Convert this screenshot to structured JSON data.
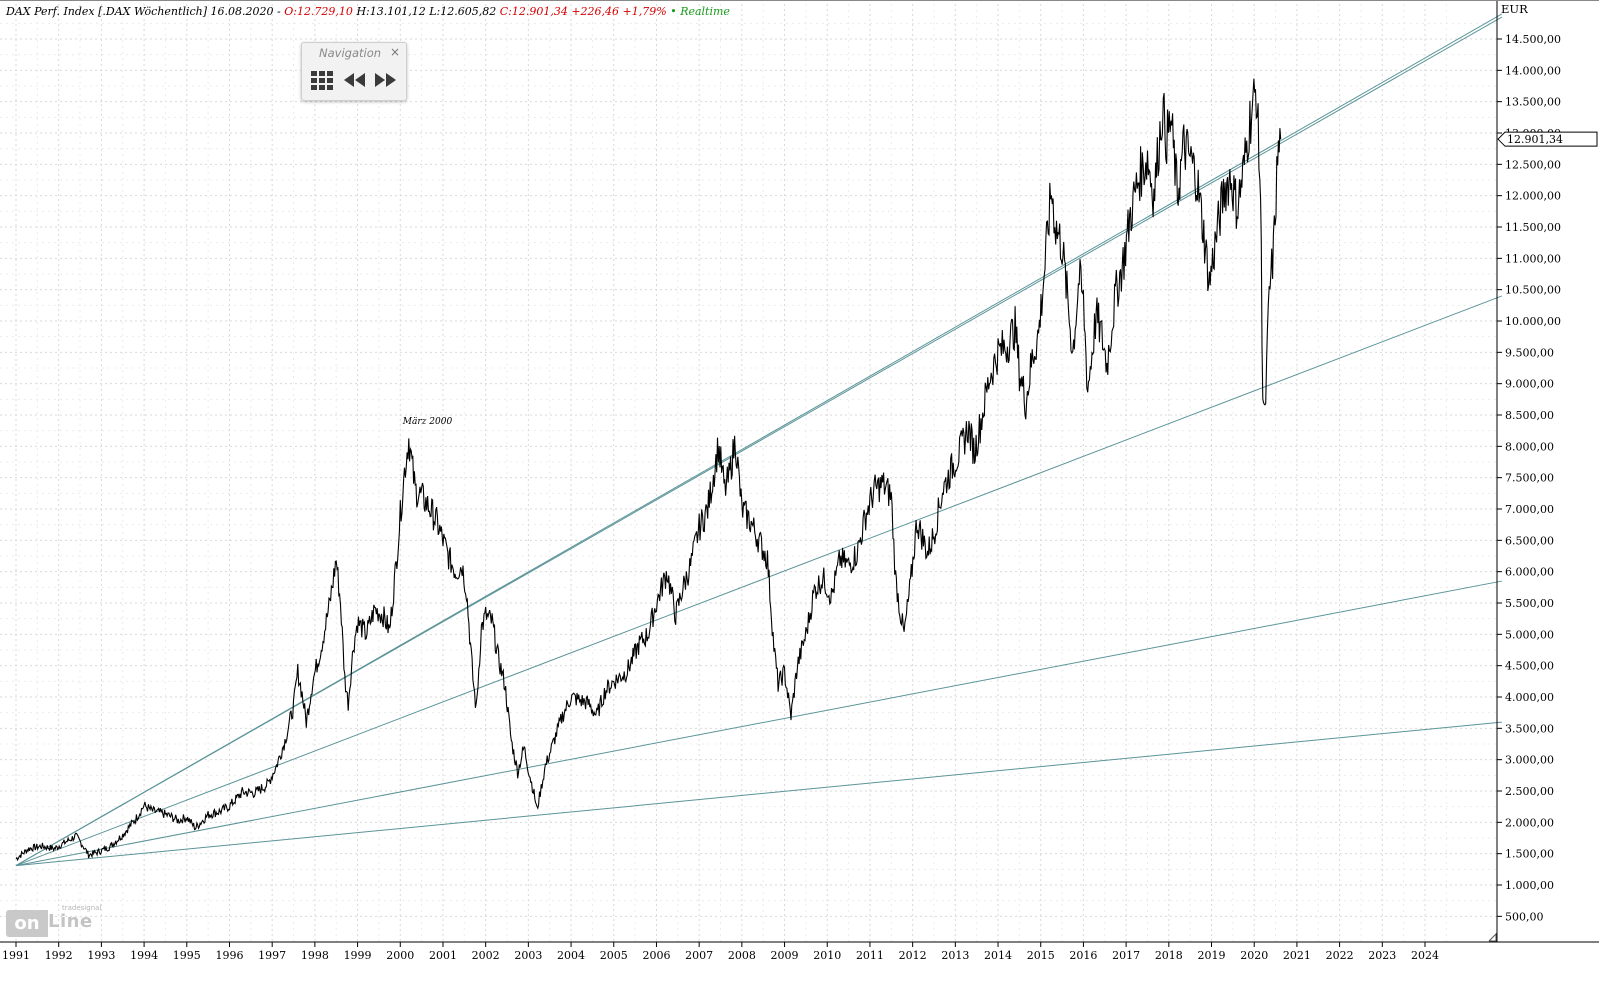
{
  "header": {
    "instrument": "DAX Perf. Index [.DAX Wöchentlich] 16.08.2020 -",
    "open": "O:12.729,10",
    "high": "H:13.101,12",
    "low": "L:12.605,82",
    "close": "C:12.901,34 +226,46 +1,79%",
    "realtime": "• Realtime"
  },
  "navigation": {
    "title": "Navigation",
    "close_glyph": "×"
  },
  "logo": {
    "brand_a": "on",
    "brand_b": "Line",
    "brand_small": "tradesignal"
  },
  "colors": {
    "price_line": "#000000",
    "trendlines": "#5b9498",
    "grid": "#d9d9d9",
    "last_price_marker": "#000000"
  },
  "chart_data": {
    "type": "line",
    "title": "DAX Perf. Index [.DAX Wöchentlich]",
    "y_unit": "EUR",
    "ylim": [
      100,
      15000
    ],
    "xlim": [
      1991.0,
      2025.8
    ],
    "x_ticks": [
      "1991",
      "1992",
      "1993",
      "1994",
      "1995",
      "1996",
      "1997",
      "1998",
      "1999",
      "2000",
      "2001",
      "2002",
      "2003",
      "2004",
      "2005",
      "2006",
      "2007",
      "2008",
      "2009",
      "2010",
      "2011",
      "2012",
      "2013",
      "2014",
      "2015",
      "2016",
      "2017",
      "2018",
      "2019",
      "2020",
      "2021",
      "2022",
      "2023",
      "2024"
    ],
    "y_ticks": [
      "14.500,00",
      "14.000,00",
      "13.500,00",
      "13.000,00",
      "12.500,00",
      "12.000,00",
      "11.500,00",
      "11.000,00",
      "10.500,00",
      "10.000,00",
      "9.500,00",
      "9.000,00",
      "8.500,00",
      "8.000,00",
      "7.500,00",
      "7.000,00",
      "6.500,00",
      "6.000,00",
      "5.500,00",
      "5.000,00",
      "4.500,00",
      "4.000,00",
      "3.500,00",
      "3.000,00",
      "2.500,00",
      "2.000,00",
      "1.500,00",
      "1.000,00",
      "500,00"
    ],
    "y_tick_values": [
      14500,
      14000,
      13500,
      13000,
      12500,
      12000,
      11500,
      11000,
      10500,
      10000,
      9500,
      9000,
      8500,
      8000,
      7500,
      7000,
      6500,
      6000,
      5500,
      5000,
      4500,
      4000,
      3500,
      3000,
      2500,
      2000,
      1500,
      1000,
      500
    ],
    "last_price_label": "12.901,34",
    "last_price": 12901.34,
    "grid": true,
    "annotation": {
      "text": "März 2000",
      "x": 2000.2,
      "y": 8136
    },
    "series": [
      {
        "values": [
          [
            1991.0,
            1420
          ],
          [
            1991.3,
            1580
          ],
          [
            1991.6,
            1620
          ],
          [
            1991.9,
            1580
          ],
          [
            1992.2,
            1700
          ],
          [
            1992.4,
            1780
          ],
          [
            1992.55,
            1650
          ],
          [
            1992.7,
            1480
          ],
          [
            1992.9,
            1520
          ],
          [
            1993.2,
            1610
          ],
          [
            1993.5,
            1800
          ],
          [
            1993.8,
            2050
          ],
          [
            1994.0,
            2270
          ],
          [
            1994.2,
            2180
          ],
          [
            1994.4,
            2150
          ],
          [
            1994.6,
            2100
          ],
          [
            1994.8,
            2030
          ],
          [
            1995.0,
            2080
          ],
          [
            1995.2,
            1910
          ],
          [
            1995.5,
            2120
          ],
          [
            1995.8,
            2180
          ],
          [
            1996.0,
            2260
          ],
          [
            1996.3,
            2480
          ],
          [
            1996.6,
            2470
          ],
          [
            1996.9,
            2610
          ],
          [
            1997.1,
            2900
          ],
          [
            1997.3,
            3300
          ],
          [
            1997.5,
            3850
          ],
          [
            1997.6,
            4400
          ],
          [
            1997.7,
            4050
          ],
          [
            1997.8,
            3600
          ],
          [
            1997.95,
            4250
          ],
          [
            1998.15,
            4800
          ],
          [
            1998.35,
            5500
          ],
          [
            1998.5,
            6200
          ],
          [
            1998.6,
            5500
          ],
          [
            1998.7,
            4300
          ],
          [
            1998.78,
            3900
          ],
          [
            1998.9,
            4800
          ],
          [
            1999.0,
            5200
          ],
          [
            1999.2,
            5000
          ],
          [
            1999.4,
            5400
          ],
          [
            1999.6,
            5300
          ],
          [
            1999.75,
            5050
          ],
          [
            1999.9,
            6100
          ],
          [
            2000.0,
            6900
          ],
          [
            2000.1,
            7600
          ],
          [
            2000.2,
            8130
          ],
          [
            2000.35,
            7300
          ],
          [
            2000.5,
            7200
          ],
          [
            2000.7,
            7000
          ],
          [
            2000.85,
            6800
          ],
          [
            2001.0,
            6500
          ],
          [
            2001.15,
            6200
          ],
          [
            2001.3,
            6000
          ],
          [
            2001.45,
            6100
          ],
          [
            2001.55,
            5700
          ],
          [
            2001.7,
            4300
          ],
          [
            2001.78,
            3800
          ],
          [
            2001.9,
            5100
          ],
          [
            2002.0,
            5300
          ],
          [
            2002.15,
            5200
          ],
          [
            2002.3,
            4600
          ],
          [
            2002.45,
            4200
          ],
          [
            2002.6,
            3300
          ],
          [
            2002.75,
            2800
          ],
          [
            2002.9,
            3200
          ],
          [
            2003.0,
            2850
          ],
          [
            2003.15,
            2400
          ],
          [
            2003.2,
            2200
          ],
          [
            2003.4,
            2900
          ],
          [
            2003.6,
            3300
          ],
          [
            2003.8,
            3700
          ],
          [
            2004.0,
            4000
          ],
          [
            2004.2,
            3950
          ],
          [
            2004.4,
            3900
          ],
          [
            2004.6,
            3700
          ],
          [
            2004.8,
            4100
          ],
          [
            2005.0,
            4250
          ],
          [
            2005.3,
            4400
          ],
          [
            2005.6,
            4850
          ],
          [
            2005.8,
            5000
          ],
          [
            2006.0,
            5500
          ],
          [
            2006.25,
            6000
          ],
          [
            2006.45,
            5300
          ],
          [
            2006.6,
            5700
          ],
          [
            2006.8,
            6100
          ],
          [
            2007.0,
            6700
          ],
          [
            2007.2,
            7000
          ],
          [
            2007.45,
            8000
          ],
          [
            2007.6,
            7300
          ],
          [
            2007.7,
            7500
          ],
          [
            2007.85,
            8100
          ],
          [
            2008.0,
            7000
          ],
          [
            2008.2,
            6800
          ],
          [
            2008.4,
            6500
          ],
          [
            2008.6,
            6200
          ],
          [
            2008.75,
            4800
          ],
          [
            2008.85,
            4200
          ],
          [
            2009.0,
            4400
          ],
          [
            2009.15,
            3700
          ],
          [
            2009.3,
            4500
          ],
          [
            2009.5,
            5000
          ],
          [
            2009.7,
            5700
          ],
          [
            2009.9,
            5900
          ],
          [
            2010.1,
            5600
          ],
          [
            2010.3,
            6200
          ],
          [
            2010.5,
            6100
          ],
          [
            2010.7,
            6300
          ],
          [
            2010.9,
            6900
          ],
          [
            2011.1,
            7300
          ],
          [
            2011.3,
            7400
          ],
          [
            2011.5,
            7200
          ],
          [
            2011.6,
            5900
          ],
          [
            2011.7,
            5400
          ],
          [
            2011.8,
            5000
          ],
          [
            2011.95,
            5800
          ],
          [
            2012.1,
            6800
          ],
          [
            2012.35,
            6300
          ],
          [
            2012.5,
            6600
          ],
          [
            2012.7,
            7300
          ],
          [
            2012.95,
            7700
          ],
          [
            2013.1,
            7900
          ],
          [
            2013.3,
            8300
          ],
          [
            2013.45,
            7900
          ],
          [
            2013.6,
            8400
          ],
          [
            2013.8,
            9100
          ],
          [
            2014.0,
            9500
          ],
          [
            2014.2,
            9600
          ],
          [
            2014.4,
            9900
          ],
          [
            2014.5,
            9200
          ],
          [
            2014.65,
            8700
          ],
          [
            2014.8,
            9400
          ],
          [
            2014.95,
            9800
          ],
          [
            2015.1,
            10900
          ],
          [
            2015.25,
            12100
          ],
          [
            2015.35,
            11500
          ],
          [
            2015.5,
            11200
          ],
          [
            2015.65,
            10200
          ],
          [
            2015.75,
            9500
          ],
          [
            2015.9,
            10700
          ],
          [
            2016.0,
            10300
          ],
          [
            2016.1,
            8900
          ],
          [
            2016.3,
            10100
          ],
          [
            2016.45,
            9700
          ],
          [
            2016.55,
            9300
          ],
          [
            2016.75,
            10400
          ],
          [
            2016.95,
            11000
          ],
          [
            2017.1,
            11700
          ],
          [
            2017.3,
            12300
          ],
          [
            2017.5,
            12600
          ],
          [
            2017.65,
            12000
          ],
          [
            2017.85,
            13400
          ],
          [
            2017.95,
            12900
          ],
          [
            2018.05,
            13200
          ],
          [
            2018.2,
            12000
          ],
          [
            2018.35,
            12800
          ],
          [
            2018.5,
            12600
          ],
          [
            2018.65,
            12300
          ],
          [
            2018.8,
            11500
          ],
          [
            2018.95,
            10600
          ],
          [
            2019.1,
            11300
          ],
          [
            2019.3,
            12100
          ],
          [
            2019.45,
            12300
          ],
          [
            2019.6,
            11800
          ],
          [
            2019.75,
            12400
          ],
          [
            2019.9,
            13200
          ],
          [
            2020.05,
            13700
          ],
          [
            2020.15,
            12000
          ],
          [
            2020.2,
            8900
          ],
          [
            2020.25,
            8400
          ],
          [
            2020.35,
            10400
          ],
          [
            2020.45,
            11100
          ],
          [
            2020.55,
            12600
          ],
          [
            2020.62,
            12900
          ]
        ]
      }
    ],
    "trendlines": [
      {
        "from": [
          1991.0,
          1310
        ],
        "to": [
          2000.2,
          8136
        ],
        "to2": [
          2025.8,
          14850
        ]
      },
      {
        "from": [
          1991.0,
          1310
        ],
        "to": [
          2025.8,
          14900
        ]
      },
      {
        "from": [
          1991.0,
          1310
        ],
        "to": [
          2025.8,
          10400
        ]
      },
      {
        "from": [
          1991.0,
          1310
        ],
        "to": [
          2025.8,
          5850
        ]
      },
      {
        "from": [
          1991.0,
          1310
        ],
        "to": [
          2025.8,
          3600
        ]
      }
    ]
  }
}
